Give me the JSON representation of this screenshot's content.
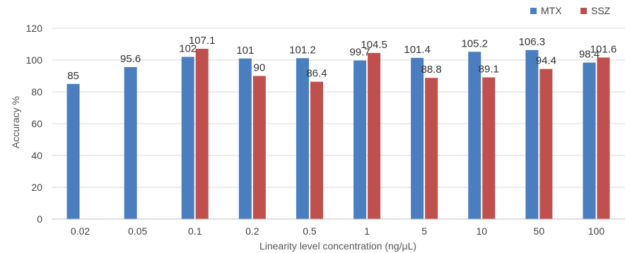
{
  "chart_data": {
    "type": "bar",
    "categories": [
      "0.02",
      "0.05",
      "0.1",
      "0.2",
      "0.5",
      "1",
      "5",
      "10",
      "50",
      "100"
    ],
    "series": [
      {
        "name": "MTX",
        "color": "#4a7ebf",
        "values": [
          85,
          95.6,
          102,
          101,
          101.2,
          99.7,
          101.4,
          105.2,
          106.3,
          98.4
        ],
        "labels": [
          "85",
          "95.6",
          "102",
          "101",
          "101.2",
          "99.7",
          "101.4",
          "105.2",
          "106.3",
          "98.4"
        ]
      },
      {
        "name": "SSZ",
        "color": "#c0504d",
        "values": [
          null,
          null,
          107.1,
          90,
          86.4,
          104.5,
          88.8,
          89.1,
          94.4,
          101.6
        ],
        "labels": [
          null,
          null,
          "107.1",
          "90",
          "86.4",
          "104.5",
          "88.8",
          "89.1",
          "94.4",
          "101.6"
        ]
      }
    ],
    "xlabel": "Linearity level concentration (ng/μL)",
    "ylabel": "Accuracy %",
    "ylim": [
      0,
      120
    ],
    "yticks": [
      "0",
      "20",
      "40",
      "60",
      "80",
      "100",
      "120"
    ],
    "grid": true,
    "legend": "top-right"
  }
}
